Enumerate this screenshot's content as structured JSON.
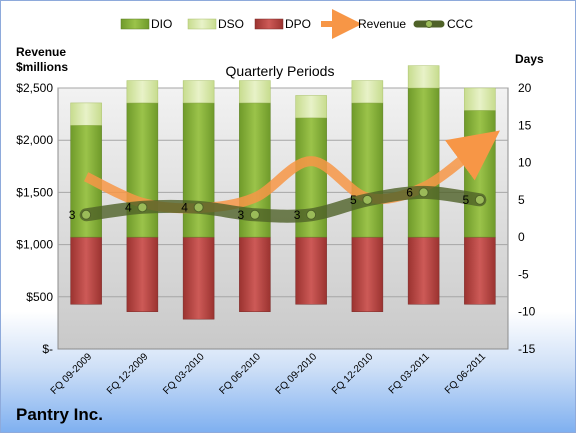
{
  "chart_data": {
    "type": "bar",
    "title": "Quarterly Periods",
    "company": "Pantry Inc.",
    "y_left_label_line1": "Revenue",
    "y_left_label_line2": "$millions",
    "y_right_label": "Days",
    "categories": [
      "FQ 09-2009",
      "FQ 12-2009",
      "FQ 03-2010",
      "FQ 06-2010",
      "FQ 09-2010",
      "FQ 12-2010",
      "FQ 03-2011",
      "FQ 06-2011"
    ],
    "y_left_ticks": [
      "$-",
      "$500",
      "$1,000",
      "$1,500",
      "$2,000",
      "$2,500"
    ],
    "y_left_range": [
      0,
      2500
    ],
    "y_right_ticks": [
      "-15",
      "-10",
      "-5",
      "0",
      "5",
      "10",
      "15",
      "20"
    ],
    "y_right_range": [
      -15,
      20
    ],
    "grid": true,
    "legend_position": "top",
    "series": [
      {
        "name": "DIO",
        "axis": "right",
        "kind": "stacked-bar",
        "color": "#8ab33f",
        "values": [
          15,
          18,
          18,
          18,
          16,
          18,
          20,
          17
        ]
      },
      {
        "name": "DSO",
        "axis": "right",
        "kind": "stacked-bar",
        "color": "#d9e8b0",
        "values": [
          3,
          3,
          3,
          3,
          3,
          3,
          3,
          3
        ]
      },
      {
        "name": "DPO",
        "axis": "right",
        "kind": "negative-bar",
        "color": "#c0504d",
        "values": [
          -9,
          -10,
          -11,
          -10,
          -9,
          -10,
          -9,
          -9
        ]
      },
      {
        "name": "Revenue",
        "axis": "left",
        "kind": "line",
        "color": "#f79646",
        "values": [
          1650,
          1400,
          1350,
          1450,
          1800,
          1450,
          1550,
          1950
        ]
      },
      {
        "name": "CCC",
        "axis": "right",
        "kind": "line",
        "color": "#4f6228",
        "values": [
          3,
          4,
          4,
          3,
          3,
          5,
          6,
          5
        ],
        "labels": [
          "3",
          "4",
          "4",
          "3",
          "3",
          "5",
          "6",
          "5"
        ]
      }
    ],
    "colors": {
      "plot_bg": "#e8e8e8",
      "grid": "#a6a6a6"
    }
  }
}
